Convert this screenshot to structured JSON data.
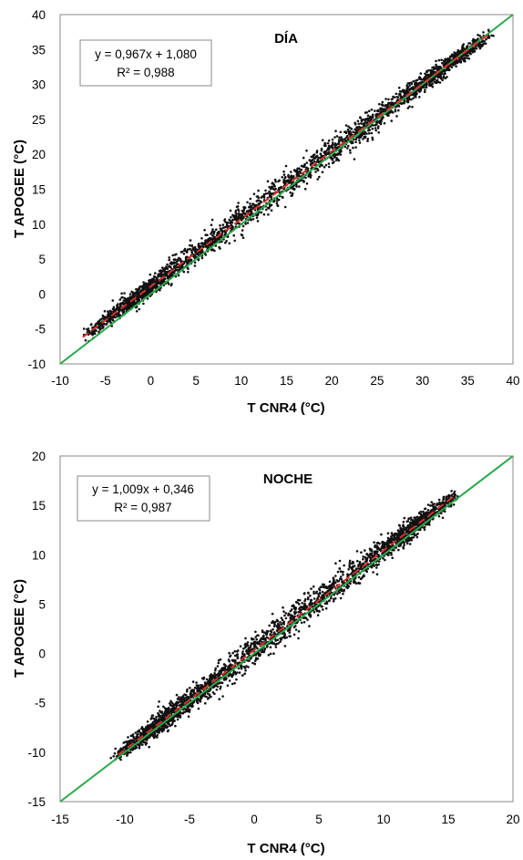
{
  "chart_data": [
    {
      "type": "scatter",
      "panel_label": "DÍA",
      "xlabel": "T CNR4 (°C)",
      "ylabel": "T APOGEE (°C)",
      "xlim": [
        -10,
        40
      ],
      "ylim": [
        -10,
        40
      ],
      "xticks": [
        "-10",
        "-5",
        "0",
        "5",
        "10",
        "15",
        "20",
        "25",
        "30",
        "35",
        "40"
      ],
      "yticks": [
        "-10",
        "-5",
        "0",
        "5",
        "10",
        "15",
        "20",
        "25",
        "30",
        "35",
        "40"
      ],
      "equation": "y = 0,967x + 1,080",
      "r2": "R² = 0,988",
      "fit": {
        "slope": 0.967,
        "intercept": 1.08,
        "x_range": [
          -7.5,
          37.5
        ],
        "color": "#d9312b",
        "style": "dashed"
      },
      "identity_line": {
        "x_range": [
          -10,
          40
        ],
        "color": "#2aa84a"
      },
      "point_cloud": {
        "x_range": [
          -7.3,
          37.4
        ],
        "band_halfwidth": 1.2,
        "color": "#111111"
      },
      "grid": false
    },
    {
      "type": "scatter",
      "panel_label": "NOCHE",
      "xlabel": "T CNR4 (°C)",
      "ylabel": "T APOGEE (°C)",
      "xlim": [
        -15,
        20
      ],
      "ylim": [
        -15,
        20
      ],
      "xticks": [
        "-15",
        "-10",
        "-5",
        "0",
        "5",
        "10",
        "15",
        "20"
      ],
      "yticks": [
        "-15",
        "-10",
        "-5",
        "0",
        "5",
        "10",
        "15",
        "20"
      ],
      "equation": "y = 1,009x + 0,346",
      "r2": "R² = 0,987",
      "fit": {
        "slope": 1.009,
        "intercept": 0.346,
        "x_range": [
          -10.5,
          15.5
        ],
        "color": "#d9312b",
        "style": "dashed"
      },
      "identity_line": {
        "x_range": [
          -15,
          20
        ],
        "color": "#2aa84a"
      },
      "point_cloud": {
        "x_range": [
          -10.8,
          15.6
        ],
        "band_halfwidth": 0.9,
        "color": "#111111"
      },
      "grid": false
    }
  ]
}
